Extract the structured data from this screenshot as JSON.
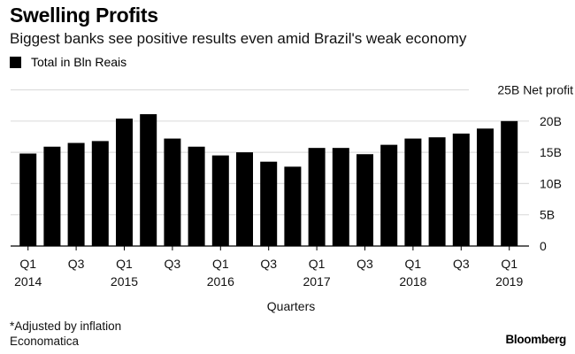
{
  "header": {
    "title": "Swelling Profits",
    "subtitle": "Biggest banks see positive results even amid Brazil's weak economy"
  },
  "legend": {
    "label": "Total in Bln Reais",
    "color": "#000000"
  },
  "footer": {
    "note": "*Adjusted by inflation",
    "source": "Economatica",
    "brand": "Bloomberg"
  },
  "chart_data": {
    "type": "bar",
    "title": "Swelling Profits",
    "subtitle": "Biggest banks see positive results even amid Brazil's weak economy",
    "xlabel": "Quarters",
    "ylabel": "Net profit",
    "ylim": [
      0,
      25
    ],
    "grid": true,
    "legend_position": "top-left",
    "bar_color": "#000000",
    "grid_color": "#dddddd",
    "categories": [
      "Q1 2014",
      "Q2 2014",
      "Q3 2014",
      "Q4 2014",
      "Q1 2015",
      "Q2 2015",
      "Q3 2015",
      "Q4 2015",
      "Q1 2016",
      "Q2 2016",
      "Q3 2016",
      "Q4 2016",
      "Q1 2017",
      "Q2 2017",
      "Q3 2017",
      "Q4 2017",
      "Q1 2018",
      "Q2 2018",
      "Q3 2018",
      "Q4 2018",
      "Q1 2019"
    ],
    "series": [
      {
        "name": "Total in Bln Reais",
        "values": [
          14.8,
          15.9,
          16.5,
          16.8,
          20.4,
          21.1,
          17.2,
          15.9,
          14.5,
          15.0,
          13.5,
          12.7,
          15.7,
          15.7,
          14.7,
          16.2,
          17.2,
          17.4,
          18.0,
          18.8,
          20.0
        ]
      }
    ],
    "y_ticks": [
      {
        "value": 0,
        "label": "0"
      },
      {
        "value": 5,
        "label": "5B"
      },
      {
        "value": 10,
        "label": "10B"
      },
      {
        "value": 15,
        "label": "15B"
      },
      {
        "value": 20,
        "label": "20B"
      },
      {
        "value": 25,
        "label": "25B Net profit"
      }
    ],
    "x_ticks": [
      {
        "index": 0,
        "quarter": "Q1",
        "year": "2014"
      },
      {
        "index": 2,
        "quarter": "Q3",
        "year": ""
      },
      {
        "index": 4,
        "quarter": "Q1",
        "year": "2015"
      },
      {
        "index": 6,
        "quarter": "Q3",
        "year": ""
      },
      {
        "index": 8,
        "quarter": "Q1",
        "year": "2016"
      },
      {
        "index": 10,
        "quarter": "Q3",
        "year": ""
      },
      {
        "index": 12,
        "quarter": "Q1",
        "year": "2017"
      },
      {
        "index": 14,
        "quarter": "Q3",
        "year": ""
      },
      {
        "index": 16,
        "quarter": "Q1",
        "year": "2018"
      },
      {
        "index": 18,
        "quarter": "Q3",
        "year": ""
      },
      {
        "index": 20,
        "quarter": "Q1",
        "year": "2019"
      }
    ]
  }
}
